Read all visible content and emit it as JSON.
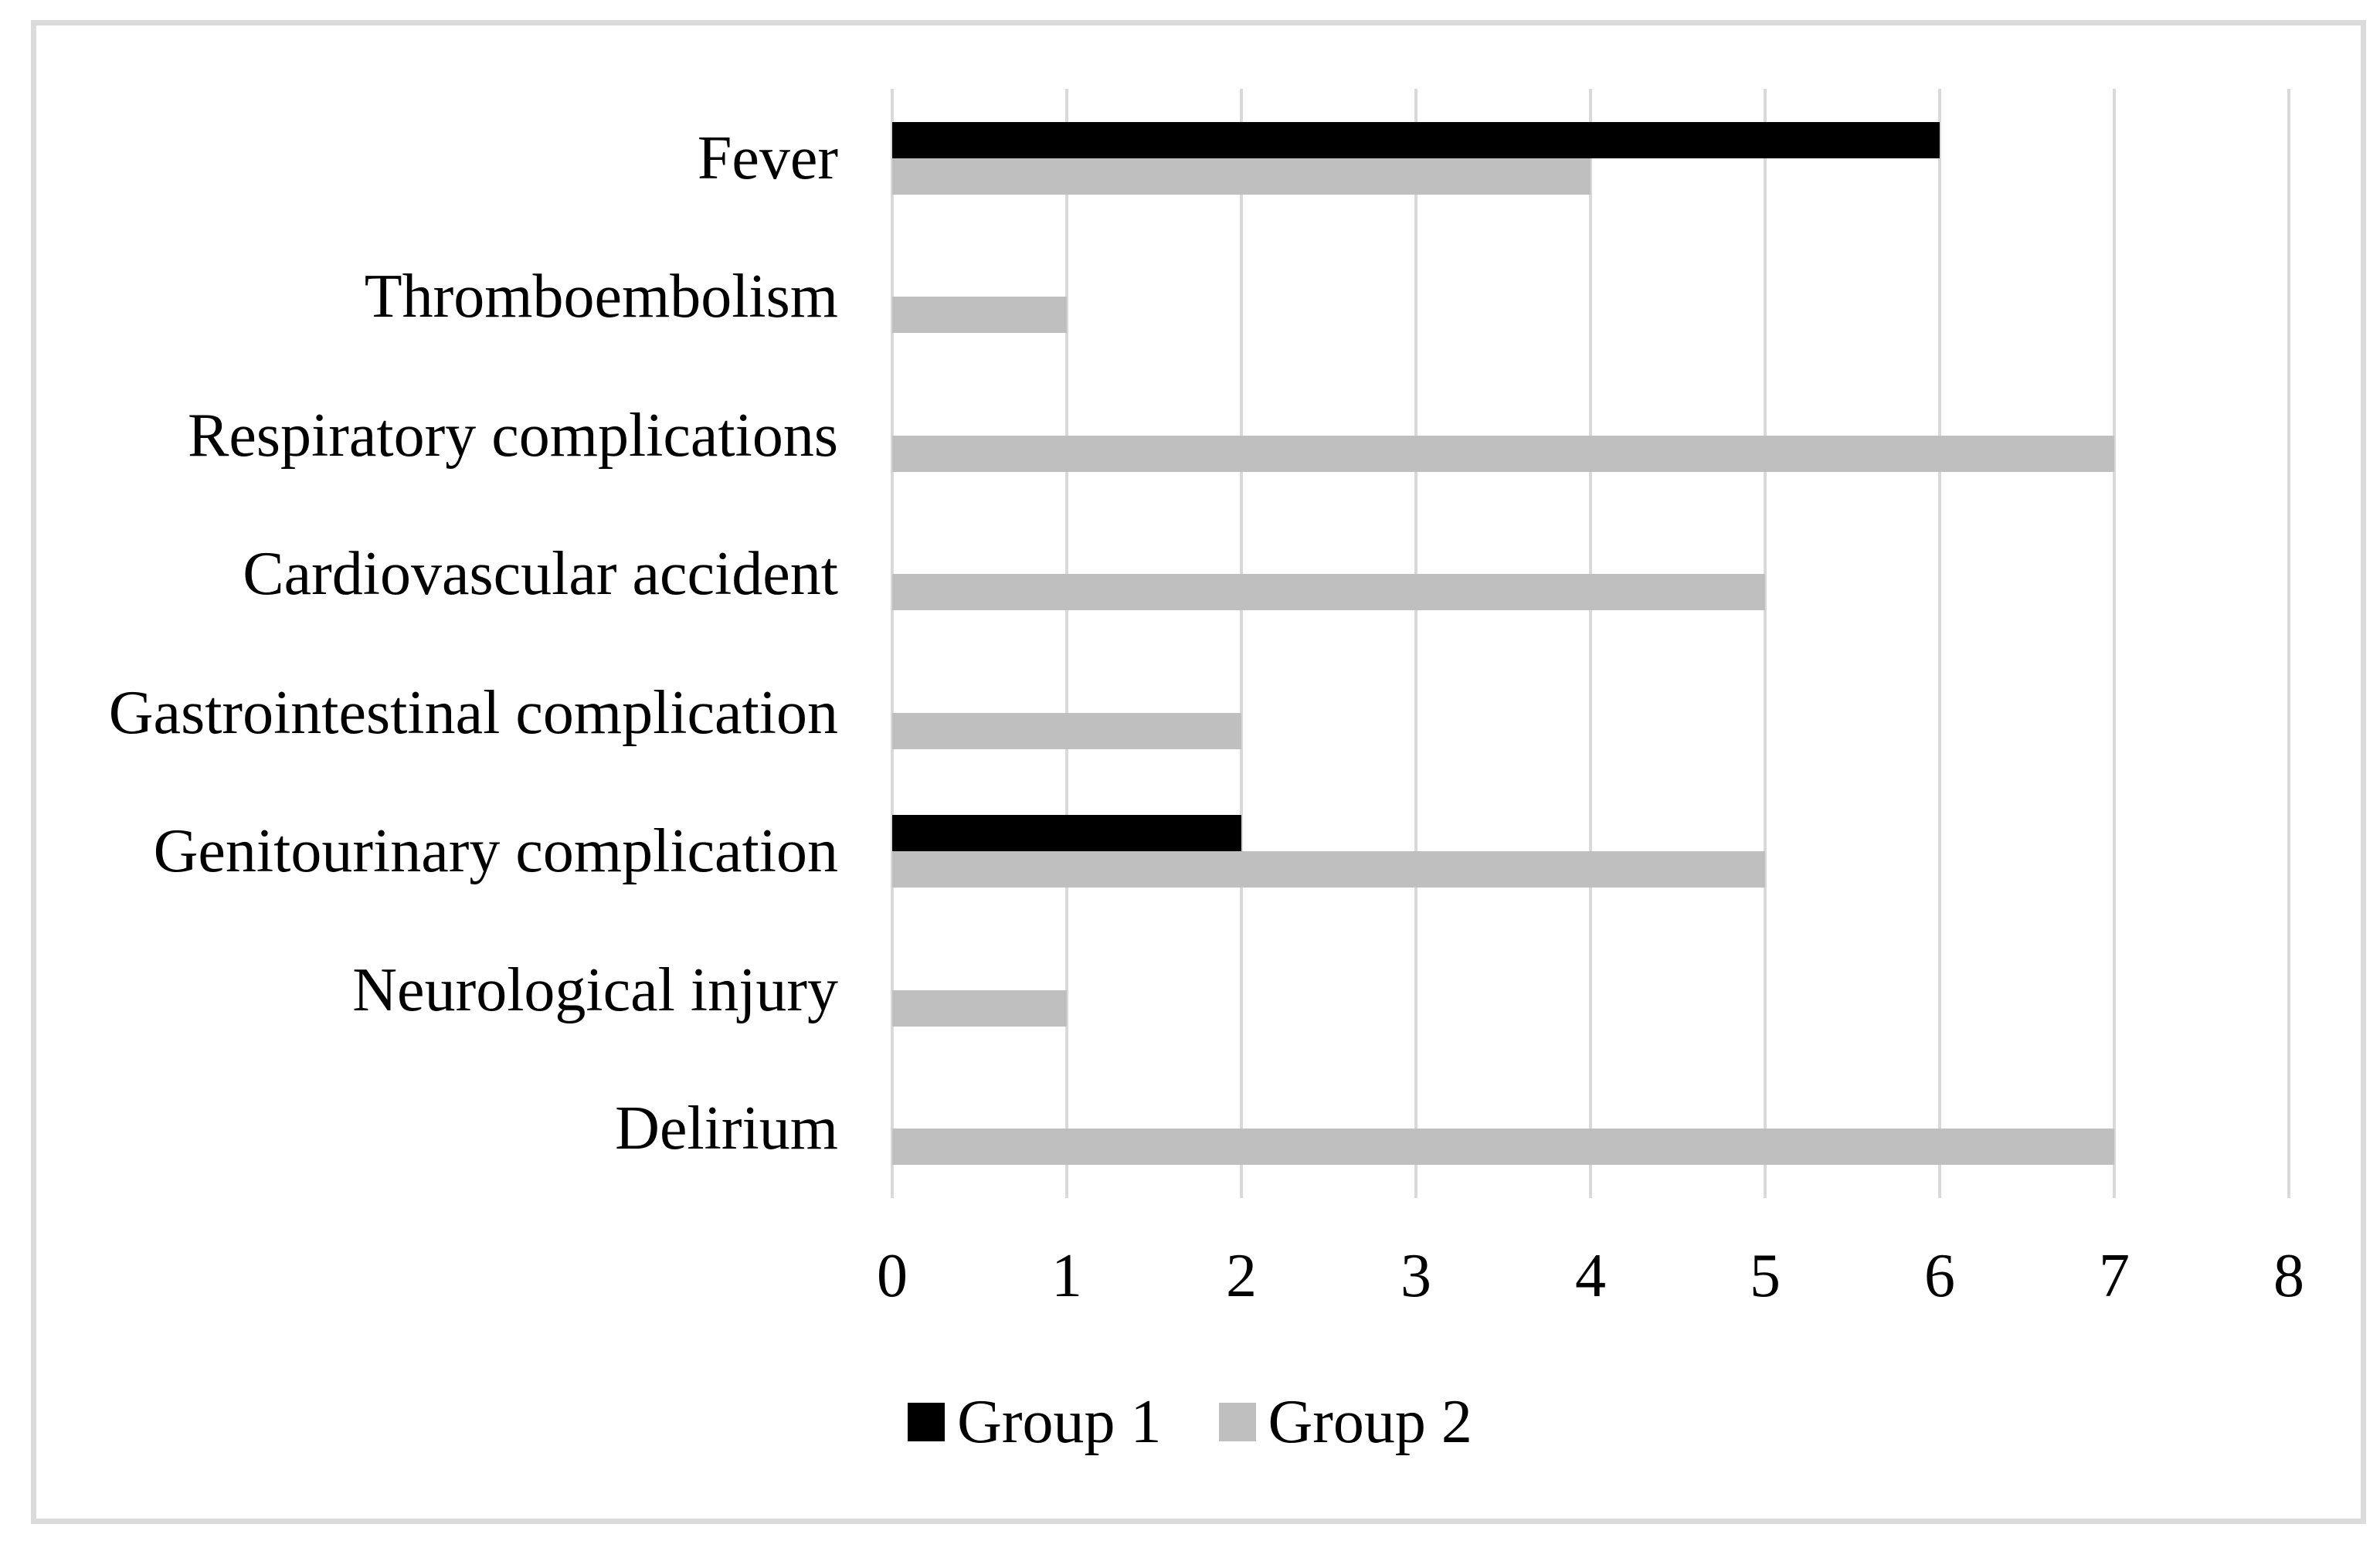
{
  "figure": {
    "background": "#FFFFFF",
    "border_color": "#DBDBDB",
    "text_color": "#000000"
  },
  "chart_data": {
    "type": "bar",
    "orientation": "horizontal",
    "title": "",
    "xlabel": "",
    "ylabel": "",
    "categories": [
      "Fever",
      "Thromboembolism",
      "Respiratory complications",
      "Cardiovascular accident",
      "Gastrointestinal complication",
      "Genitourinary complication",
      "Neurological injury",
      "Delirium"
    ],
    "series": [
      {
        "name": "Group 1",
        "color": "#000000",
        "values": [
          6,
          0,
          0,
          0,
          0,
          2,
          0,
          0
        ]
      },
      {
        "name": "Group 2",
        "color": "#BFBFBF",
        "values": [
          4,
          1,
          7,
          5,
          2,
          5,
          1,
          7
        ]
      }
    ],
    "xlim": [
      0,
      8
    ],
    "xticks": [
      0,
      1,
      2,
      3,
      4,
      5,
      6,
      7,
      8
    ],
    "grid": true,
    "gridline_color": "#D9D9D9",
    "legend_position": "bottom"
  }
}
